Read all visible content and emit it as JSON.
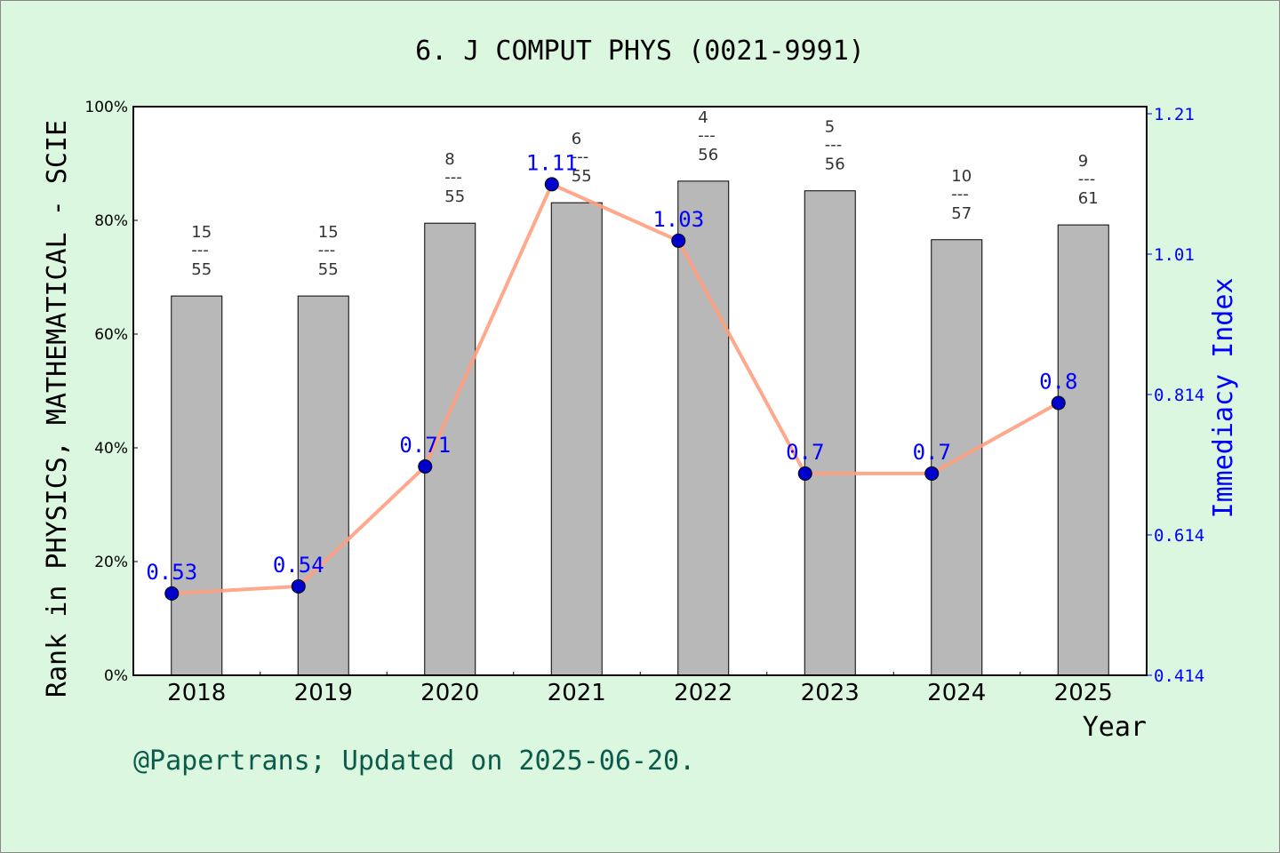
{
  "chart_data": {
    "type": "bar+line",
    "title": "6. J COMPUT PHYS (0021-9991)",
    "xlabel": "Year",
    "ylabel_left": "Rank in PHYSICS, MATHEMATICAL - SCIE",
    "ylabel_right": "Immediacy Index",
    "categories": [
      "2018",
      "2019",
      "2020",
      "2021",
      "2022",
      "2023",
      "2024",
      "2025"
    ],
    "left_axis": {
      "range": [
        0,
        100
      ],
      "ticks": [
        "0%",
        "20%",
        "40%",
        "60%",
        "80%",
        "100%"
      ]
    },
    "right_axis": {
      "range": [
        0.414,
        1.21
      ],
      "ticks": [
        "0.414",
        "0.614",
        "0.814",
        "1.01",
        "1.21"
      ]
    },
    "bars": {
      "values_percent": [
        66.7,
        66.7,
        79.5,
        83.1,
        86.9,
        85.2,
        76.6,
        79.2
      ],
      "rank": [
        "15",
        "15",
        "8",
        "6",
        "4",
        "5",
        "10",
        "9"
      ],
      "total": [
        "55",
        "55",
        "55",
        "55",
        "56",
        "56",
        "57",
        "61"
      ],
      "color": "#b8b8b8"
    },
    "line": {
      "values": [
        0.53,
        0.54,
        0.71,
        1.11,
        1.03,
        0.7,
        0.7,
        0.8
      ],
      "labels": [
        "0.53",
        "0.54",
        "0.71",
        "1.11",
        "1.03",
        "0.7",
        "0.7",
        "0.8"
      ],
      "line_color": "#ff9f7f",
      "marker_color": "#0000cc",
      "label_color": "#0000ff"
    },
    "background": "#dbf7df"
  },
  "footer": "@Papertrans; Updated on 2025-06-20."
}
